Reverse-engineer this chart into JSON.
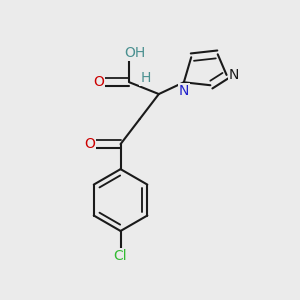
{
  "background_color": "#ebebeb",
  "bond_color": "#1a1a1a",
  "bond_width": 1.5,
  "figsize": [
    3.0,
    3.0
  ],
  "dpi": 100,
  "colors": {
    "O": "#cc0000",
    "OH": "#4a9090",
    "H": "#4a9090",
    "N_blue": "#2222cc",
    "N_dark": "#1a1a1a",
    "Cl": "#33bb33",
    "bond": "#1a1a1a"
  }
}
